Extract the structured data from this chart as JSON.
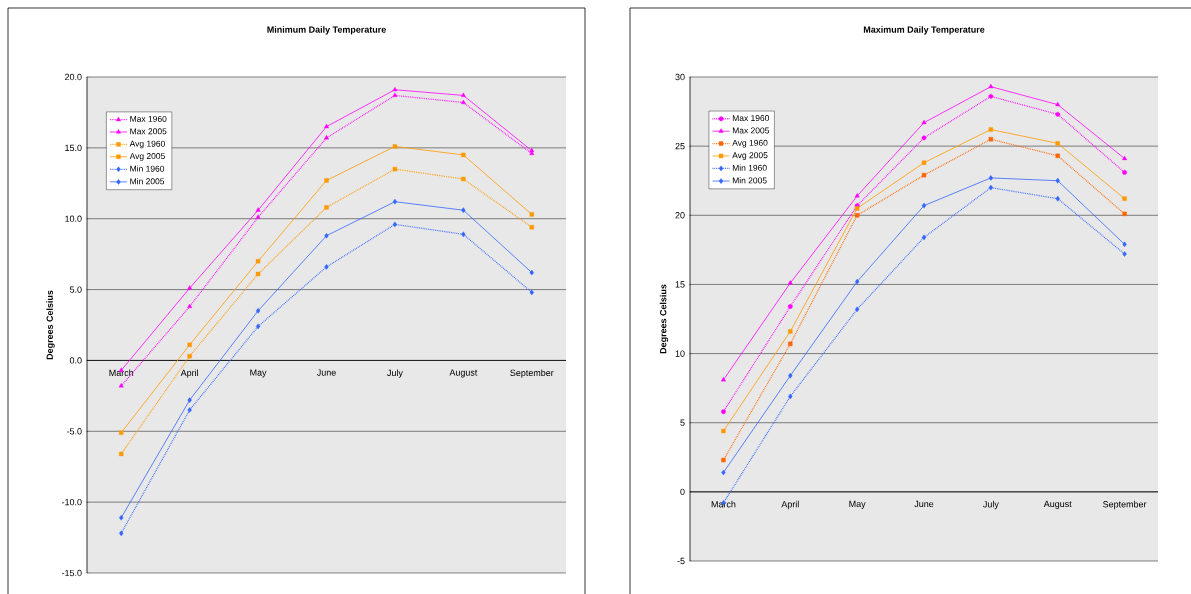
{
  "chart_data": [
    {
      "type": "line",
      "title": "Minimum Daily Temperature",
      "ylabel": "Degrees Celsius",
      "categories": [
        "March",
        "April",
        "May",
        "June",
        "July",
        "August",
        "September"
      ],
      "ylim": [
        -15,
        20
      ],
      "yticks": [
        {
          "value": -15,
          "label": "-15.0"
        },
        {
          "value": -10,
          "label": "-10.0"
        },
        {
          "value": -5,
          "label": "-5.0"
        },
        {
          "value": 0,
          "label": "0.0"
        },
        {
          "value": 5,
          "label": "5.0"
        },
        {
          "value": 10,
          "label": "10.0"
        },
        {
          "value": 15,
          "label": "15.0"
        },
        {
          "value": 20,
          "label": "20.0"
        }
      ],
      "grid": "y",
      "legend": "top left",
      "series": [
        {
          "name": "Max 1960",
          "color": "#ff00ff",
          "marker": "triangle",
          "line_style": "dotted",
          "values": [
            -1.8,
            3.8,
            10.1,
            15.7,
            18.7,
            18.2,
            14.6
          ]
        },
        {
          "name": "Max 2005",
          "color": "#ff00ff",
          "marker": "triangle",
          "line_style": "solid",
          "values": [
            -0.7,
            5.1,
            10.6,
            16.5,
            19.1,
            18.7,
            14.8
          ]
        },
        {
          "name": "Avg 1960",
          "color": "#ff9900",
          "marker": "square",
          "line_style": "dotted",
          "values": [
            -6.6,
            0.3,
            6.1,
            10.8,
            13.5,
            12.8,
            9.4
          ]
        },
        {
          "name": "Avg 2005",
          "color": "#ff9900",
          "marker": "square",
          "line_style": "solid",
          "values": [
            -5.1,
            1.1,
            7.0,
            12.7,
            15.1,
            14.5,
            10.3
          ]
        },
        {
          "name": "Min 1960",
          "color": "#3366ff",
          "marker": "diamond",
          "line_style": "dotted",
          "values": [
            -12.2,
            -3.5,
            2.4,
            6.6,
            9.6,
            8.9,
            4.8
          ]
        },
        {
          "name": "Min 2005",
          "color": "#3366ff",
          "marker": "diamond",
          "line_style": "solid",
          "values": [
            -11.1,
            -2.8,
            3.5,
            8.8,
            11.2,
            10.6,
            6.2
          ]
        }
      ]
    },
    {
      "type": "line",
      "title": "Maximum Daily Temperature",
      "ylabel": "Degrees Celsius",
      "categories": [
        "March",
        "April",
        "May",
        "June",
        "July",
        "August",
        "September"
      ],
      "ylim": [
        -5,
        30
      ],
      "yticks": [
        -5,
        0,
        5,
        10,
        15,
        20,
        25,
        30
      ],
      "grid": "y",
      "legend": "top left",
      "series": [
        {
          "name": "Max 1960",
          "color": "#ff00ff",
          "marker": "circle",
          "line_style": "dotted",
          "values": [
            5.8,
            13.4,
            20.7,
            25.6,
            28.6,
            27.3,
            23.1
          ]
        },
        {
          "name": "Max 2005",
          "color": "#ff00ff",
          "marker": "triangle",
          "line_style": "solid",
          "values": [
            8.1,
            15.1,
            21.4,
            26.7,
            29.3,
            28.0,
            24.1
          ]
        },
        {
          "name": "Avg 1960",
          "color": "#ff6600",
          "marker": "square",
          "line_style": "dotted",
          "values": [
            2.3,
            10.7,
            20.0,
            22.9,
            25.5,
            24.3,
            20.1
          ]
        },
        {
          "name": "Avg 2005",
          "color": "#ff9900",
          "marker": "square",
          "line_style": "solid",
          "values": [
            4.4,
            11.6,
            20.5,
            23.8,
            26.2,
            25.2,
            21.2
          ]
        },
        {
          "name": "Min 1960",
          "color": "#3366ff",
          "marker": "diamond",
          "line_style": "dotted",
          "values": [
            -0.8,
            6.9,
            13.2,
            18.4,
            22.0,
            21.2,
            17.2
          ]
        },
        {
          "name": "Min 2005",
          "color": "#3366ff",
          "marker": "diamond",
          "line_style": "solid",
          "values": [
            1.4,
            8.4,
            15.2,
            20.7,
            22.7,
            22.5,
            17.9
          ]
        }
      ]
    }
  ]
}
